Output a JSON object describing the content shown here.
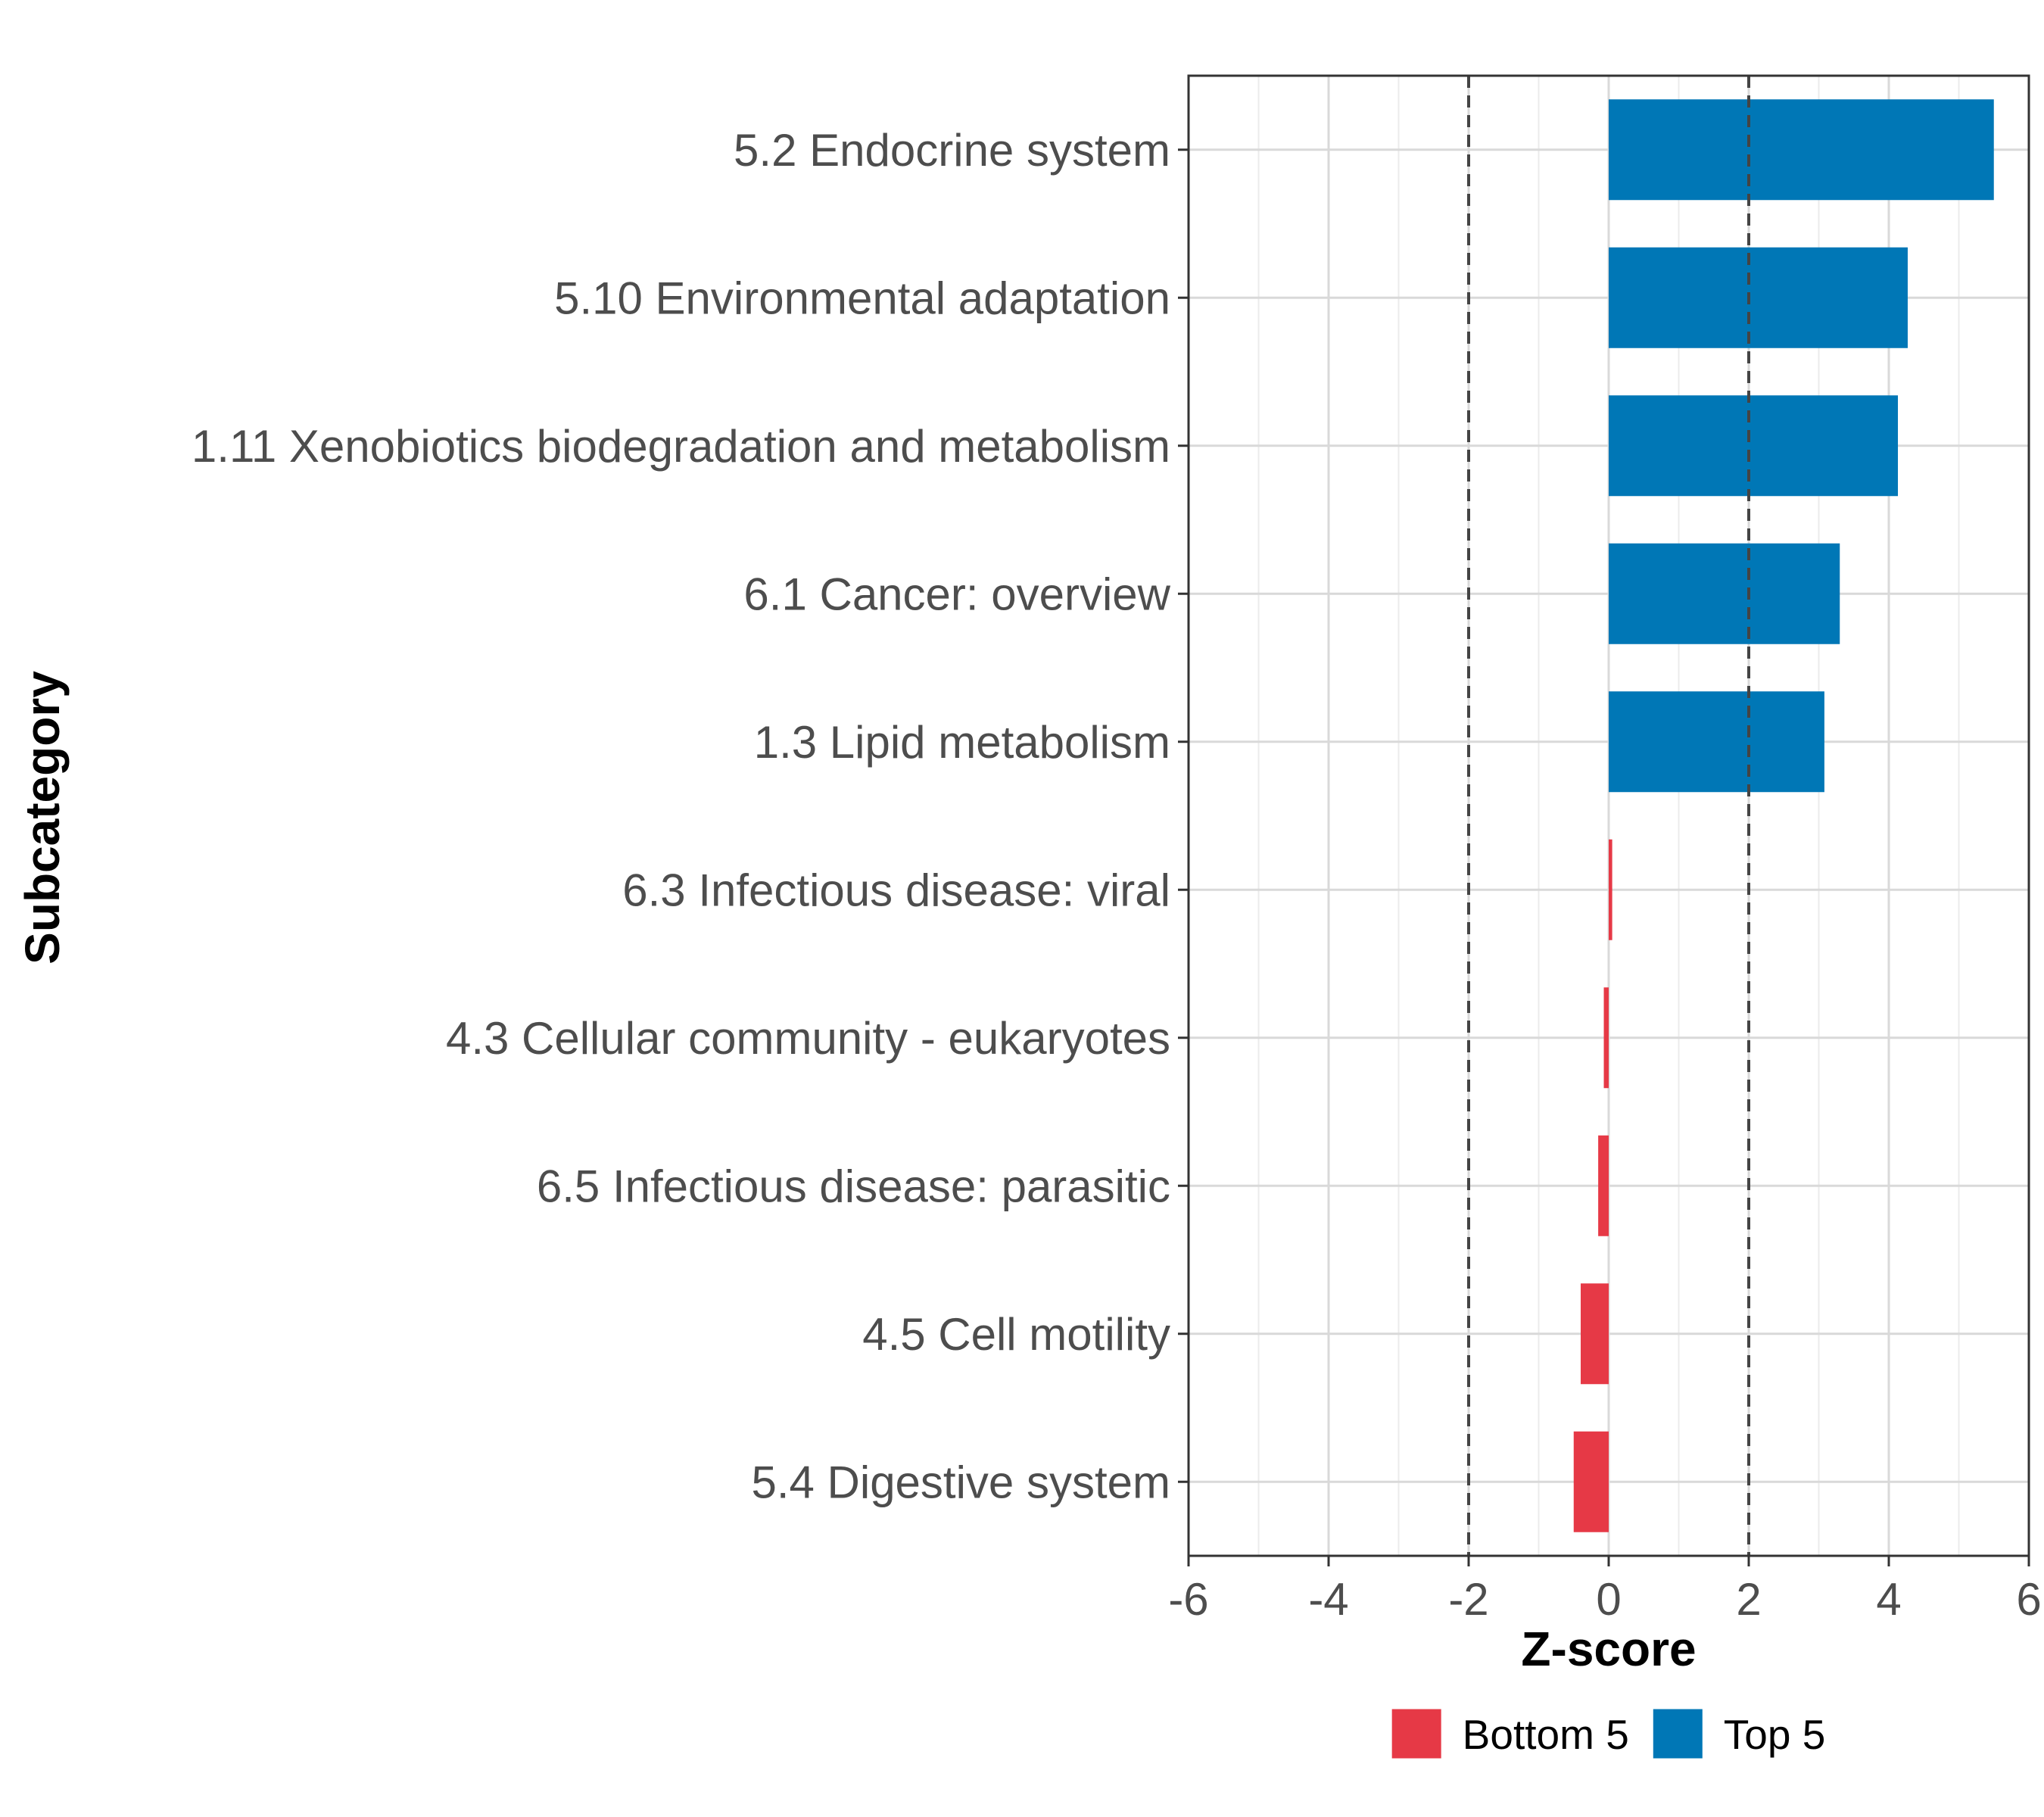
{
  "chart_data": {
    "type": "bar",
    "orientation": "horizontal",
    "title": "",
    "xlabel": "Z-score",
    "ylabel": "Subcategory",
    "xlim": [
      -6,
      6
    ],
    "x_ticks": [
      "-6",
      "-4",
      "-2",
      "0",
      "2",
      "4",
      "6"
    ],
    "reference_lines": [
      -2,
      2
    ],
    "grid": true,
    "categories": [
      "5.2 Endocrine system",
      "5.10 Environmental adaptation",
      "1.11 Xenobiotics biodegradation and metabolism",
      "6.1 Cancer: overview",
      "1.3 Lipid metabolism",
      "6.3 Infectious disease: viral",
      "4.3 Cellular community - eukaryotes",
      "6.5 Infectious disease: parasitic",
      "4.5 Cell motility",
      "5.4 Digestive system"
    ],
    "values": [
      5.5,
      4.27,
      4.13,
      3.3,
      3.08,
      0.05,
      -0.07,
      -0.15,
      -0.4,
      -0.5
    ],
    "groups": [
      "Top 5",
      "Top 5",
      "Top 5",
      "Top 5",
      "Top 5",
      "Bottom 5",
      "Bottom 5",
      "Bottom 5",
      "Bottom 5",
      "Bottom 5"
    ],
    "legend": {
      "position": "bottom",
      "entries": [
        {
          "label": "Bottom 5",
          "color": "#E63946"
        },
        {
          "label": "Top 5",
          "color": "#0077B6"
        }
      ]
    }
  }
}
